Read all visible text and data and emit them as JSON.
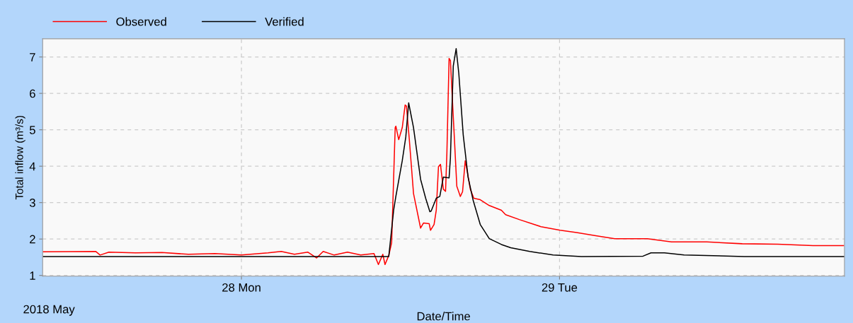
{
  "chart_data": {
    "type": "line",
    "xlabel": "Date/Time",
    "ylabel": "Total inflow (m³/s)",
    "annotations": [
      "2018 May"
    ],
    "xlim": [
      "2018-05-27T09:00",
      "2018-05-29T21:30"
    ],
    "xticks": [
      {
        "value": "2018-05-28",
        "label": "28 Mon"
      },
      {
        "value": "2018-05-29",
        "label": "29 Tue"
      }
    ],
    "ylim": [
      0.98,
      7.5
    ],
    "yticks": [
      1,
      2,
      3,
      4,
      5,
      6,
      7
    ],
    "grid": true,
    "legend": "top left",
    "line_style": "solid",
    "marker": "none",
    "series": [
      {
        "name": "Observed",
        "color": "#ff0000",
        "x": [
          "2018-05-27T09:00",
          "2018-05-27T13:00",
          "2018-05-27T13:20",
          "2018-05-27T14:00",
          "2018-05-27T16:00",
          "2018-05-27T18:00",
          "2018-05-27T20:00",
          "2018-05-27T22:00",
          "2018-05-28T00:00",
          "2018-05-28T02:00",
          "2018-05-28T03:00",
          "2018-05-28T04:00",
          "2018-05-28T05:00",
          "2018-05-28T05:40",
          "2018-05-28T06:10",
          "2018-05-28T07:00",
          "2018-05-28T08:00",
          "2018-05-28T09:00",
          "2018-05-28T10:00",
          "2018-05-28T10:20",
          "2018-05-28T10:40",
          "2018-05-28T10:50",
          "2018-05-28T11:07",
          "2018-05-28T11:20",
          "2018-05-28T11:36",
          "2018-05-28T11:39",
          "2018-05-28T11:52",
          "2018-05-28T12:08",
          "2018-05-28T12:21",
          "2018-05-28T12:27",
          "2018-05-28T12:40",
          "2018-05-28T12:59",
          "2018-05-28T13:31",
          "2018-05-28T13:44",
          "2018-05-28T14:10",
          "2018-05-28T14:16",
          "2018-05-28T14:32",
          "2018-05-28T14:42",
          "2018-05-28T14:52",
          "2018-05-28T15:01",
          "2018-05-28T15:14",
          "2018-05-28T15:24",
          "2018-05-28T15:30",
          "2018-05-28T15:40",
          "2018-05-28T15:46",
          "2018-05-28T16:02",
          "2018-05-28T16:15",
          "2018-05-28T16:31",
          "2018-05-28T16:41",
          "2018-05-28T16:53",
          "2018-05-28T17:03",
          "2018-05-28T17:16",
          "2018-05-28T17:32",
          "2018-05-28T18:01",
          "2018-05-28T18:42",
          "2018-05-28T19:37",
          "2018-05-28T19:56",
          "2018-05-28T21:00",
          "2018-05-28T22:36",
          "2018-05-29T00:03",
          "2018-05-29T01:17",
          "2018-05-29T02:44",
          "2018-05-29T04:10",
          "2018-05-29T06:38",
          "2018-05-29T08:27",
          "2018-05-29T11:07",
          "2018-05-29T13:47",
          "2018-05-29T16:28",
          "2018-05-29T19:08",
          "2018-05-29T21:26"
        ],
        "values": [
          1.65,
          1.66,
          1.56,
          1.64,
          1.62,
          1.63,
          1.58,
          1.6,
          1.56,
          1.62,
          1.66,
          1.58,
          1.64,
          1.48,
          1.66,
          1.56,
          1.64,
          1.56,
          1.6,
          1.3,
          1.58,
          1.3,
          1.55,
          1.9,
          5.06,
          5.1,
          4.73,
          5.06,
          5.68,
          5.65,
          4.73,
          3.25,
          2.3,
          2.44,
          2.42,
          2.24,
          2.4,
          2.79,
          3.99,
          4.05,
          3.37,
          3.31,
          4.34,
          6.96,
          6.9,
          5.0,
          3.45,
          3.17,
          3.3,
          4.15,
          3.83,
          3.37,
          3.12,
          3.08,
          2.92,
          2.79,
          2.67,
          2.53,
          2.34,
          2.24,
          2.18,
          2.09,
          2.01,
          2.01,
          1.92,
          1.92,
          1.87,
          1.86,
          1.82,
          1.82
        ]
      },
      {
        "name": "Verified",
        "color": "#000000",
        "x": [
          "2018-05-27T09:00",
          "2018-05-28T11:07",
          "2018-05-28T11:29",
          "2018-05-28T11:39",
          "2018-05-28T12:08",
          "2018-05-28T12:24",
          "2018-05-28T12:37",
          "2018-05-28T12:59",
          "2018-05-28T13:31",
          "2018-05-28T13:54",
          "2018-05-28T14:13",
          "2018-05-28T14:19",
          "2018-05-28T14:42",
          "2018-05-28T14:58",
          "2018-05-28T15:14",
          "2018-05-28T15:40",
          "2018-05-28T15:46",
          "2018-05-28T15:59",
          "2018-05-28T16:12",
          "2018-05-28T16:24",
          "2018-05-28T16:44",
          "2018-05-28T17:06",
          "2018-05-28T17:29",
          "2018-05-28T18:01",
          "2018-05-28T18:42",
          "2018-05-28T19:37",
          "2018-05-28T20:19",
          "2018-05-28T21:45",
          "2018-05-28T23:31",
          "2018-05-29T01:39",
          "2018-05-29T06:18",
          "2018-05-29T06:54",
          "2018-05-29T07:55",
          "2018-05-29T09:24",
          "2018-05-29T13:57",
          "2018-05-29T21:30"
        ],
        "values": [
          1.52,
          1.52,
          2.79,
          3.17,
          4.15,
          4.8,
          5.74,
          5.06,
          3.64,
          3.12,
          2.75,
          2.77,
          3.12,
          3.17,
          3.7,
          3.68,
          4.22,
          6.75,
          7.23,
          6.55,
          4.86,
          3.7,
          3.06,
          2.4,
          2.01,
          1.85,
          1.76,
          1.66,
          1.56,
          1.52,
          1.53,
          1.62,
          1.62,
          1.56,
          1.52,
          1.52
        ]
      }
    ]
  }
}
